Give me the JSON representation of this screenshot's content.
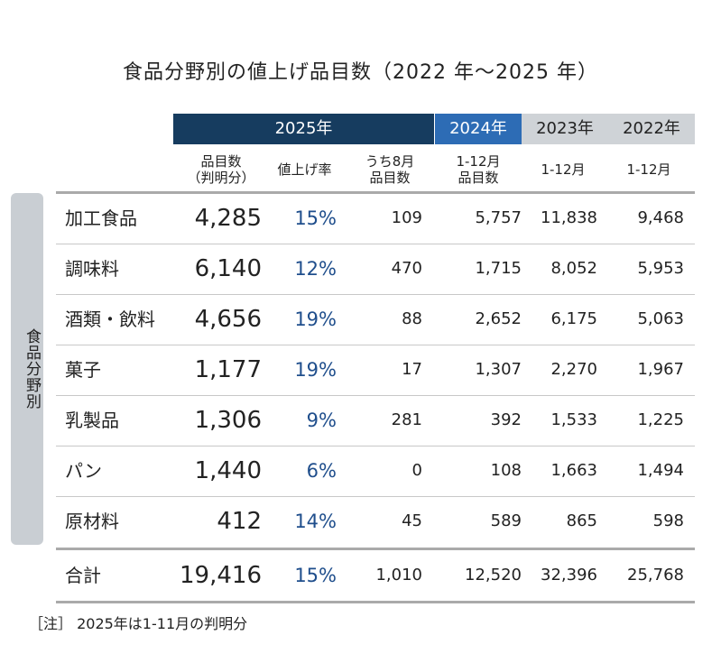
{
  "title": "食品分野別の値上げ品目数（2022 年～2025 年）",
  "chart_data": {
    "type": "table",
    "title": "食品分野別の値上げ品目数（2022 年～2025 年）",
    "year_headers": [
      "2025年",
      "2024年",
      "2023年",
      "2022年"
    ],
    "column_headers": [
      "品目数\n（判明分）",
      "値上げ率",
      "うち8月\n品目数",
      "1-12月\n品目数",
      "1-12月",
      "1-12月"
    ],
    "side_label": "食品分野別",
    "rows": [
      {
        "category": "加工食品",
        "items_2025": "4,285",
        "rate": "15%",
        "aug": "109",
        "y2024": "5,757",
        "y2023": "11,838",
        "y2022": "9,468"
      },
      {
        "category": "調味料",
        "items_2025": "6,140",
        "rate": "12%",
        "aug": "470",
        "y2024": "1,715",
        "y2023": "8,052",
        "y2022": "5,953"
      },
      {
        "category": "酒類・飲料",
        "items_2025": "4,656",
        "rate": "19%",
        "aug": "88",
        "y2024": "2,652",
        "y2023": "6,175",
        "y2022": "5,063"
      },
      {
        "category": "菓子",
        "items_2025": "1,177",
        "rate": "19%",
        "aug": "17",
        "y2024": "1,307",
        "y2023": "2,270",
        "y2022": "1,967"
      },
      {
        "category": "乳製品",
        "items_2025": "1,306",
        "rate": "9%",
        "aug": "281",
        "y2024": "392",
        "y2023": "1,533",
        "y2022": "1,225"
      },
      {
        "category": "パン",
        "items_2025": "1,440",
        "rate": "6%",
        "aug": "0",
        "y2024": "108",
        "y2023": "1,663",
        "y2022": "1,494"
      },
      {
        "category": "原材料",
        "items_2025": "412",
        "rate": "14%",
        "aug": "45",
        "y2024": "589",
        "y2023": "865",
        "y2022": "598"
      }
    ],
    "total": {
      "category": "合計",
      "items_2025": "19,416",
      "rate": "15%",
      "aug": "1,010",
      "y2024": "12,520",
      "y2023": "32,396",
      "y2022": "25,768"
    },
    "note": "［注］ 2025年は1-11月の判明分"
  },
  "colors": {
    "header_2025": "#163c5f",
    "header_2024": "#2d6cb5",
    "header_past": "#cfd3d7",
    "rate_text": "#1f4e8c",
    "side_band": "#c9ced3"
  }
}
